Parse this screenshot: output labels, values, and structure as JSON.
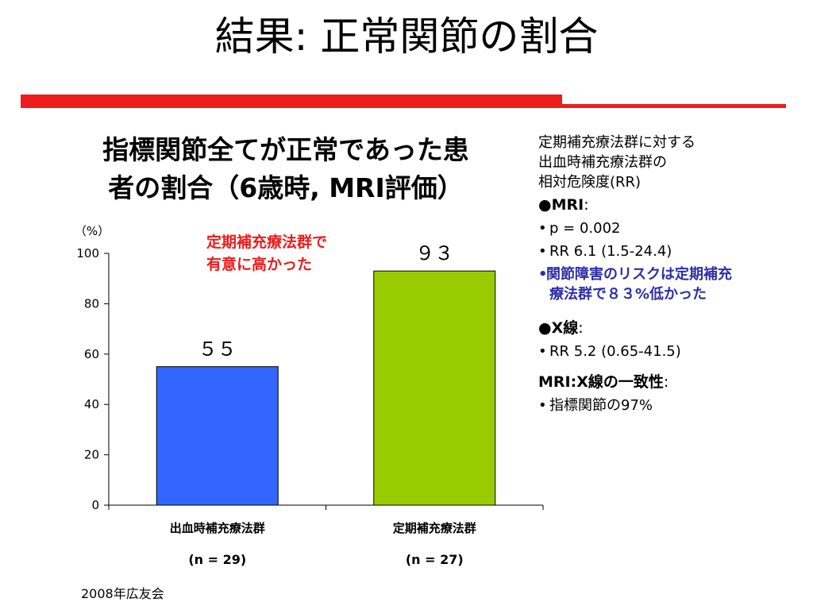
{
  "slide": {
    "title": "結果: 正常関節の割合",
    "source": "2008年広友会"
  },
  "chart_title_lines": [
    "指標関節全てが正常であった患",
    "者の割合（6歳時, MRI評価）"
  ],
  "annotation_lines": [
    "定期補充療法群で",
    "有意に高かった"
  ],
  "chart_data": {
    "type": "bar",
    "unit": "（%）",
    "categories": [
      "出血時補充療法群",
      "定期補充療法群"
    ],
    "category_sublabels": [
      "(n = 29)",
      "(n = 27)"
    ],
    "values": [
      55,
      93
    ],
    "value_labels": [
      "５５",
      "９３"
    ],
    "ylim": [
      0,
      100
    ],
    "yticks": [
      0,
      20,
      40,
      60,
      80,
      100
    ],
    "colors": [
      "#3366ff",
      "#99cc00"
    ],
    "grid": false
  },
  "side": {
    "heading_lines": [
      "定期補充療法群に対する",
      "出血時補充療法群の",
      "相対危険度(RR)"
    ],
    "mri": {
      "label": "●MRI",
      "colon": ":",
      "items": [
        "p = 0.002",
        "RR 6.1 (1.5-24.4)"
      ],
      "highlight_lines": [
        "関節障害のリスクは定期補充",
        "療法群で８３%低かった"
      ]
    },
    "xray": {
      "label": "●X線",
      "colon": ":",
      "items": [
        "RR 5.2 (0.65-41.5)"
      ]
    },
    "agreement": {
      "label": "MRI:X線の一致性",
      "colon": ":",
      "items": [
        "指標関節の97%"
      ]
    }
  }
}
